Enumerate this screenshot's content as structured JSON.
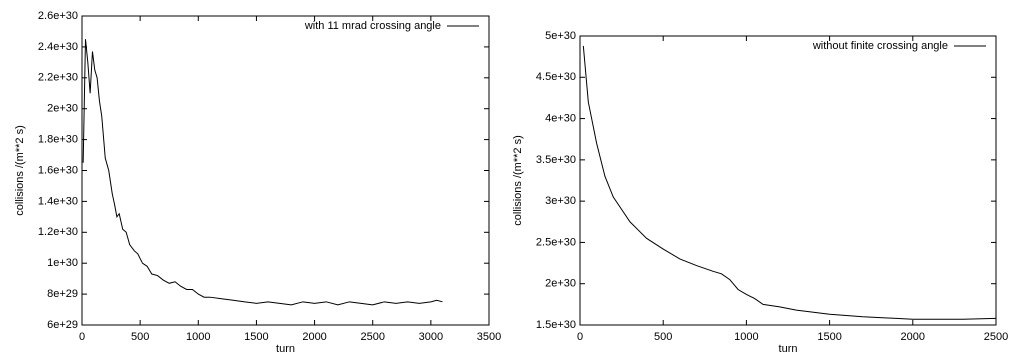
{
  "chart_data": [
    {
      "type": "line",
      "xlabel": "turn",
      "ylabel": "collisions /(m**2 s)",
      "xlim": [
        0,
        3500
      ],
      "xticks": [
        0,
        500,
        1000,
        1500,
        2000,
        2500,
        3000,
        3500
      ],
      "ylim": [
        6e+29,
        2.6e+30
      ],
      "yticks": [
        {
          "value": 6e+29,
          "label": "6e+29"
        },
        {
          "value": 8e+29,
          "label": "8e+29"
        },
        {
          "value": 1e+30,
          "label": "1e+30"
        },
        {
          "value": 1.2e+30,
          "label": "1.2e+30"
        },
        {
          "value": 1.4e+30,
          "label": "1.4e+30"
        },
        {
          "value": 1.6e+30,
          "label": "1.6e+30"
        },
        {
          "value": 1.8e+30,
          "label": "1.8e+30"
        },
        {
          "value": 2e+30,
          "label": "2e+30"
        },
        {
          "value": 2.2e+30,
          "label": "2.2e+30"
        },
        {
          "value": 2.4e+30,
          "label": "2.4e+30"
        },
        {
          "value": 2.6e+30,
          "label": "2.6e+30"
        }
      ],
      "legend": "upper right",
      "series": [
        {
          "name": "with 11 mrad crossing angle",
          "color": "#000000",
          "x": [
            10,
            30,
            50,
            70,
            90,
            110,
            130,
            150,
            170,
            200,
            230,
            260,
            280,
            300,
            320,
            350,
            380,
            410,
            450,
            480,
            520,
            560,
            600,
            650,
            700,
            750,
            800,
            850,
            900,
            950,
            1000,
            1050,
            1100,
            1200,
            1300,
            1400,
            1500,
            1600,
            1700,
            1800,
            1900,
            2000,
            2100,
            2200,
            2300,
            2400,
            2500,
            2600,
            2700,
            2800,
            2900,
            3000,
            3050,
            3100
          ],
          "values": [
            1.65e+30,
            2.45e+30,
            2.3e+30,
            2.1e+30,
            2.37e+30,
            2.25e+30,
            2.2e+30,
            2.05e+30,
            1.95e+30,
            1.68e+30,
            1.6e+30,
            1.45e+30,
            1.38e+30,
            1.3e+30,
            1.32e+30,
            1.22e+30,
            1.2e+30,
            1.12e+30,
            1.08e+30,
            1.06e+30,
            1e+30,
            9.8e+29,
            9.3e+29,
            9.2e+29,
            8.9e+29,
            8.7e+29,
            8.8e+29,
            8.5e+29,
            8.3e+29,
            8.3e+29,
            8e+29,
            7.8e+29,
            7.8e+29,
            7.7e+29,
            7.6e+29,
            7.5e+29,
            7.4e+29,
            7.5e+29,
            7.4e+29,
            7.3e+29,
            7.5e+29,
            7.4e+29,
            7.5e+29,
            7.3e+29,
            7.5e+29,
            7.4e+29,
            7.3e+29,
            7.5e+29,
            7.4e+29,
            7.5e+29,
            7.4e+29,
            7.5e+29,
            7.6e+29,
            7.5e+29
          ]
        }
      ]
    },
    {
      "type": "line",
      "xlabel": "turn",
      "ylabel": "collisions /(m**2 s)",
      "xlim": [
        0,
        2500
      ],
      "xticks": [
        0,
        500,
        1000,
        1500,
        2000,
        2500
      ],
      "ylim": [
        1.5e+30,
        5e+30
      ],
      "yticks": [
        {
          "value": 1.5e+30,
          "label": "1.5e+30"
        },
        {
          "value": 2e+30,
          "label": "2e+30"
        },
        {
          "value": 2.5e+30,
          "label": "2.5e+30"
        },
        {
          "value": 3e+30,
          "label": "3e+30"
        },
        {
          "value": 3.5e+30,
          "label": "3.5e+30"
        },
        {
          "value": 4e+30,
          "label": "4e+30"
        },
        {
          "value": 4.5e+30,
          "label": "4.5e+30"
        },
        {
          "value": 5e+30,
          "label": "5e+30"
        }
      ],
      "legend": "upper right",
      "series": [
        {
          "name": "without finite crossing angle",
          "color": "#000000",
          "x": [
            20,
            50,
            100,
            150,
            200,
            250,
            300,
            400,
            500,
            600,
            700,
            800,
            850,
            900,
            950,
            1000,
            1050,
            1100,
            1200,
            1300,
            1500,
            1700,
            2000,
            2300,
            2500
          ],
          "values": [
            4.88e+30,
            4.2e+30,
            3.7e+30,
            3.3e+30,
            3.05e+30,
            2.9e+30,
            2.75e+30,
            2.55e+30,
            2.42e+30,
            2.3e+30,
            2.22e+30,
            2.15e+30,
            2.12e+30,
            2.05e+30,
            1.93e+30,
            1.87e+30,
            1.82e+30,
            1.75e+30,
            1.72e+30,
            1.68e+30,
            1.63e+30,
            1.6e+30,
            1.57e+30,
            1.57e+30,
            1.58e+30
          ]
        }
      ]
    }
  ]
}
